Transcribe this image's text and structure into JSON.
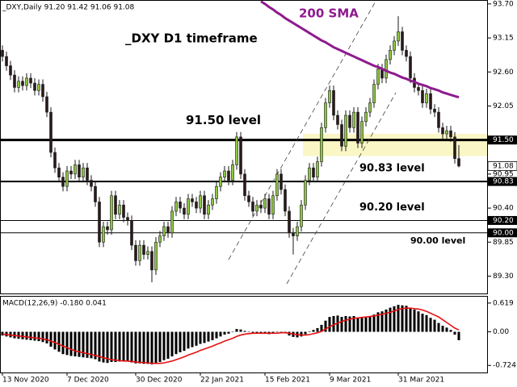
{
  "chart_data": {
    "type": "candlestick",
    "header": "_DXY,Daily  91.20 91.42 91.06 91.08",
    "title": "_DXY D1 timeframe",
    "up_color": "#8cc63f",
    "down_color": "#2a1a1a",
    "ylim": [
      89.02,
      93.75
    ],
    "yticks": [
      {
        "value": 93.7,
        "label": "93.70"
      },
      93.15,
      {
        "value": 92.6,
        "label": "92.60"
      },
      92.05,
      90.95,
      {
        "value": 90.4,
        "label": "90.40"
      },
      89.85,
      {
        "value": 89.3,
        "label": "89.30"
      }
    ],
    "last_price": {
      "value": 91.08,
      "label": "91.08"
    },
    "zone": {
      "from": 91.24,
      "to": 91.6,
      "color": "#fbf6c6"
    },
    "levels": [
      {
        "value": 91.5,
        "tag": "91.50",
        "label": "91.50 level",
        "style": "thick"
      },
      {
        "value": 90.83,
        "tag": "90.83",
        "label": "90.83 level",
        "style": "medium"
      },
      {
        "value": 90.2,
        "tag": "90.20",
        "label": "90.20 level",
        "style": "thin"
      },
      {
        "value": 90.0,
        "tag": "90.00",
        "label": "90.00 level",
        "style": "thin"
      }
    ],
    "categories": [
      "13 Nov 2020",
      null,
      null,
      null,
      null,
      null,
      null,
      null,
      null,
      null,
      null,
      null,
      null,
      null,
      null,
      null,
      "7 Dec 2020",
      null,
      null,
      null,
      null,
      null,
      null,
      null,
      null,
      null,
      null,
      null,
      null,
      null,
      null,
      null,
      null,
      "30 Dec 2020",
      null,
      null,
      null,
      null,
      null,
      null,
      null,
      null,
      null,
      null,
      null,
      null,
      null,
      null,
      null,
      "22 Jan 2021",
      null,
      null,
      null,
      null,
      null,
      null,
      null,
      null,
      null,
      null,
      null,
      null,
      null,
      null,
      null,
      "15 Feb 2021",
      null,
      null,
      null,
      null,
      null,
      null,
      null,
      null,
      null,
      null,
      null,
      null,
      null,
      null,
      null,
      "9 Mar 2021",
      null,
      null,
      null,
      null,
      null,
      null,
      null,
      null,
      null,
      null,
      null,
      null,
      null,
      null,
      null,
      null,
      "31 Mar 2021",
      null,
      null,
      null,
      null,
      null,
      null,
      null,
      null,
      null,
      null,
      null,
      null,
      null,
      null,
      null
    ],
    "candles": [
      [
        92.95,
        93.03,
        92.77,
        92.85
      ],
      [
        92.85,
        92.93,
        92.62,
        92.7
      ],
      [
        92.7,
        92.78,
        92.47,
        92.55
      ],
      [
        92.55,
        92.63,
        92.27,
        92.35
      ],
      [
        92.35,
        92.53,
        92.27,
        92.45
      ],
      [
        92.45,
        92.53,
        92.3,
        92.38
      ],
      [
        92.38,
        92.58,
        92.3,
        92.5
      ],
      [
        92.5,
        92.58,
        92.34,
        92.42
      ],
      [
        92.42,
        92.5,
        92.22,
        92.3
      ],
      [
        92.3,
        92.48,
        92.22,
        92.4
      ],
      [
        92.4,
        92.48,
        92.12,
        92.2
      ],
      [
        92.2,
        92.28,
        91.87,
        91.95
      ],
      [
        91.95,
        92.03,
        91.22,
        91.3
      ],
      [
        91.3,
        91.38,
        90.97,
        91.05
      ],
      [
        91.05,
        91.13,
        90.82,
        90.9
      ],
      [
        90.9,
        90.98,
        90.67,
        90.75
      ],
      [
        90.75,
        91.08,
        90.67,
        91.0
      ],
      [
        91.0,
        91.08,
        90.87,
        90.95
      ],
      [
        90.95,
        91.18,
        90.87,
        91.1
      ],
      [
        91.1,
        91.18,
        90.82,
        90.9
      ],
      [
        90.9,
        91.13,
        90.82,
        91.05
      ],
      [
        91.05,
        91.13,
        90.77,
        90.85
      ],
      [
        90.85,
        90.93,
        90.67,
        90.75
      ],
      [
        90.75,
        90.83,
        90.42,
        90.5
      ],
      [
        90.5,
        90.58,
        89.77,
        89.85
      ],
      [
        89.85,
        90.18,
        89.77,
        90.1
      ],
      [
        90.1,
        90.18,
        89.97,
        90.05
      ],
      [
        90.05,
        90.68,
        89.97,
        90.6
      ],
      [
        90.6,
        90.68,
        90.22,
        90.3
      ],
      [
        90.3,
        90.53,
        90.22,
        90.45
      ],
      [
        90.45,
        90.53,
        90.17,
        90.25
      ],
      [
        90.25,
        90.33,
        90.12,
        90.2
      ],
      [
        90.2,
        90.28,
        89.72,
        89.8
      ],
      [
        89.8,
        89.88,
        89.47,
        89.55
      ],
      [
        89.55,
        89.88,
        89.47,
        89.8
      ],
      [
        89.8,
        89.88,
        89.57,
        89.65
      ],
      [
        89.65,
        89.78,
        89.57,
        89.7
      ],
      [
        89.7,
        89.78,
        89.2,
        89.4
      ],
      [
        89.4,
        89.93,
        89.32,
        89.85
      ],
      [
        89.85,
        90.03,
        89.77,
        89.95
      ],
      [
        89.95,
        90.18,
        89.87,
        90.1
      ],
      [
        90.1,
        90.18,
        89.92,
        90.0
      ],
      [
        90.0,
        90.43,
        89.92,
        90.35
      ],
      [
        90.35,
        90.58,
        90.27,
        90.5
      ],
      [
        90.5,
        90.58,
        90.32,
        90.4
      ],
      [
        90.4,
        90.48,
        90.22,
        90.3
      ],
      [
        90.3,
        90.63,
        90.22,
        90.55
      ],
      [
        90.55,
        90.63,
        90.42,
        90.5
      ],
      [
        90.5,
        90.58,
        90.32,
        90.4
      ],
      [
        90.4,
        90.68,
        90.32,
        90.6
      ],
      [
        90.6,
        90.68,
        90.22,
        90.3
      ],
      [
        90.3,
        90.53,
        90.22,
        90.45
      ],
      [
        90.45,
        90.63,
        90.37,
        90.55
      ],
      [
        90.55,
        90.83,
        90.47,
        90.75
      ],
      [
        90.75,
        90.98,
        90.67,
        90.9
      ],
      [
        90.9,
        91.08,
        90.82,
        91.0
      ],
      [
        91.0,
        91.08,
        90.77,
        90.85
      ],
      [
        90.85,
        91.18,
        90.77,
        91.1
      ],
      [
        91.1,
        91.63,
        91.02,
        91.55
      ],
      [
        91.55,
        91.63,
        90.87,
        90.95
      ],
      [
        90.95,
        91.03,
        90.52,
        90.6
      ],
      [
        90.6,
        90.68,
        90.42,
        90.5
      ],
      [
        90.5,
        90.58,
        90.27,
        90.35
      ],
      [
        90.35,
        90.53,
        90.27,
        90.45
      ],
      [
        90.45,
        90.53,
        90.32,
        90.4
      ],
      [
        90.4,
        90.63,
        90.32,
        90.55
      ],
      [
        90.55,
        90.63,
        90.22,
        90.3
      ],
      [
        90.3,
        90.68,
        90.22,
        90.6
      ],
      [
        90.6,
        91.03,
        90.52,
        90.95
      ],
      [
        90.95,
        91.03,
        90.62,
        90.7
      ],
      [
        90.7,
        90.78,
        90.27,
        90.35
      ],
      [
        90.35,
        90.43,
        89.92,
        90.0
      ],
      [
        90.0,
        90.08,
        89.65,
        89.95
      ],
      [
        89.95,
        90.18,
        89.87,
        90.1
      ],
      [
        90.1,
        90.53,
        90.02,
        90.45
      ],
      [
        90.45,
        90.93,
        90.37,
        90.85
      ],
      [
        90.85,
        91.13,
        90.77,
        91.05
      ],
      [
        91.05,
        91.13,
        90.82,
        90.9
      ],
      [
        90.9,
        91.23,
        90.82,
        91.15
      ],
      [
        91.15,
        91.78,
        91.07,
        91.7
      ],
      [
        91.7,
        92.18,
        91.62,
        92.1
      ],
      [
        92.1,
        92.38,
        92.02,
        92.3
      ],
      [
        92.3,
        92.38,
        91.82,
        91.9
      ],
      [
        91.9,
        91.98,
        91.67,
        91.75
      ],
      [
        91.75,
        91.83,
        91.32,
        91.4
      ],
      [
        91.4,
        91.98,
        91.32,
        91.9
      ],
      [
        91.9,
        91.98,
        91.62,
        91.7
      ],
      [
        91.7,
        92.03,
        91.62,
        91.95
      ],
      [
        91.95,
        92.03,
        91.37,
        91.45
      ],
      [
        91.45,
        91.88,
        91.37,
        91.8
      ],
      [
        91.8,
        92.03,
        91.72,
        91.95
      ],
      [
        91.95,
        92.18,
        91.87,
        92.1
      ],
      [
        92.1,
        92.48,
        92.02,
        92.4
      ],
      [
        92.4,
        92.73,
        92.32,
        92.65
      ],
      [
        92.65,
        92.73,
        92.42,
        92.5
      ],
      [
        92.5,
        92.88,
        92.42,
        92.8
      ],
      [
        92.8,
        93.03,
        92.72,
        92.95
      ],
      [
        92.95,
        93.18,
        92.87,
        93.1
      ],
      [
        93.1,
        93.5,
        93.02,
        93.25
      ],
      [
        93.25,
        93.33,
        92.87,
        92.95
      ],
      [
        92.95,
        93.03,
        92.77,
        92.85
      ],
      [
        92.85,
        92.93,
        92.42,
        92.5
      ],
      [
        92.5,
        92.58,
        92.27,
        92.35
      ],
      [
        92.35,
        92.43,
        92.22,
        92.3
      ],
      [
        92.3,
        92.38,
        92.02,
        92.1
      ],
      [
        92.1,
        92.33,
        92.02,
        92.25
      ],
      [
        92.25,
        92.33,
        91.92,
        92.0
      ],
      [
        92.0,
        92.08,
        91.87,
        91.95
      ],
      [
        91.95,
        92.03,
        91.62,
        91.7
      ],
      [
        91.7,
        91.78,
        91.52,
        91.6
      ],
      [
        91.6,
        91.73,
        91.52,
        91.65
      ],
      [
        91.65,
        91.73,
        91.47,
        91.55
      ],
      [
        91.55,
        91.63,
        91.12,
        91.2
      ],
      [
        91.2,
        91.42,
        91.06,
        91.08
      ]
    ],
    "sma": {
      "name": "200 SMA",
      "color": "#8e1a8e",
      "values": [
        null,
        null,
        null,
        null,
        null,
        null,
        null,
        null,
        null,
        null,
        null,
        null,
        null,
        null,
        null,
        null,
        null,
        null,
        null,
        null,
        null,
        null,
        null,
        null,
        null,
        null,
        null,
        null,
        null,
        null,
        null,
        null,
        null,
        null,
        null,
        null,
        null,
        null,
        null,
        null,
        null,
        null,
        null,
        null,
        null,
        null,
        null,
        null,
        null,
        null,
        null,
        null,
        null,
        null,
        null,
        null,
        null,
        null,
        null,
        null,
        null,
        null,
        null,
        null,
        93.74,
        93.7,
        93.65,
        93.61,
        93.56,
        93.52,
        93.47,
        93.43,
        93.39,
        93.35,
        93.31,
        93.27,
        93.23,
        93.19,
        93.15,
        93.11,
        93.08,
        93.04,
        93.0,
        92.97,
        92.94,
        92.91,
        92.88,
        92.85,
        92.82,
        92.79,
        92.76,
        92.73,
        92.7,
        92.68,
        92.65,
        92.62,
        92.59,
        92.57,
        92.54,
        92.51,
        92.49,
        92.46,
        92.44,
        92.41,
        92.39,
        92.37,
        92.34,
        92.32,
        92.3,
        92.27,
        92.25,
        92.23,
        92.21,
        92.19
      ]
    },
    "macd": {
      "label": "MACD(12,26,9) -0.180 0.041",
      "ylim": [
        -0.876,
        0.756
      ],
      "yticks": [
        0.619,
        {
          "value": 0,
          "label": "0.00"
        },
        -0.724
      ],
      "hist_color": "#000000",
      "signal_color": "#e41010",
      "hist": [
        -0.08,
        -0.1,
        -0.12,
        -0.14,
        -0.15,
        -0.16,
        -0.17,
        -0.18,
        -0.19,
        -0.2,
        -0.22,
        -0.25,
        -0.32,
        -0.38,
        -0.43,
        -0.48,
        -0.5,
        -0.52,
        -0.53,
        -0.54,
        -0.55,
        -0.56,
        -0.57,
        -0.59,
        -0.64,
        -0.66,
        -0.67,
        -0.65,
        -0.65,
        -0.64,
        -0.64,
        -0.64,
        -0.66,
        -0.68,
        -0.68,
        -0.69,
        -0.69,
        -0.7,
        -0.68,
        -0.65,
        -0.61,
        -0.58,
        -0.53,
        -0.48,
        -0.44,
        -0.41,
        -0.36,
        -0.33,
        -0.3,
        -0.26,
        -0.24,
        -0.21,
        -0.18,
        -0.14,
        -0.1,
        -0.06,
        -0.04,
        0.0,
        0.06,
        0.05,
        0.02,
        0.0,
        -0.02,
        -0.03,
        -0.04,
        -0.03,
        -0.05,
        -0.04,
        0.0,
        0.0,
        -0.03,
        -0.08,
        -0.11,
        -0.12,
        -0.1,
        -0.05,
        0.01,
        0.04,
        0.08,
        0.15,
        0.24,
        0.32,
        0.34,
        0.35,
        0.32,
        0.34,
        0.33,
        0.34,
        0.3,
        0.3,
        0.31,
        0.33,
        0.37,
        0.42,
        0.44,
        0.48,
        0.52,
        0.55,
        0.58,
        0.57,
        0.56,
        0.52,
        0.48,
        0.44,
        0.39,
        0.36,
        0.3,
        0.26,
        0.19,
        0.13,
        0.09,
        0.04,
        -0.06,
        -0.18
      ],
      "signal": [
        -0.05,
        -0.06,
        -0.07,
        -0.08,
        -0.09,
        -0.1,
        -0.11,
        -0.12,
        -0.13,
        -0.14,
        -0.15,
        -0.17,
        -0.2,
        -0.23,
        -0.27,
        -0.31,
        -0.34,
        -0.38,
        -0.41,
        -0.43,
        -0.45,
        -0.47,
        -0.49,
        -0.51,
        -0.53,
        -0.56,
        -0.58,
        -0.6,
        -0.61,
        -0.62,
        -0.63,
        -0.63,
        -0.64,
        -0.65,
        -0.66,
        -0.66,
        -0.67,
        -0.68,
        -0.68,
        -0.68,
        -0.67,
        -0.65,
        -0.63,
        -0.6,
        -0.57,
        -0.54,
        -0.5,
        -0.47,
        -0.44,
        -0.4,
        -0.37,
        -0.34,
        -0.31,
        -0.27,
        -0.24,
        -0.2,
        -0.17,
        -0.14,
        -0.1,
        -0.07,
        -0.05,
        -0.04,
        -0.03,
        -0.03,
        -0.03,
        -0.03,
        -0.03,
        -0.03,
        -0.03,
        -0.02,
        -0.02,
        -0.03,
        -0.05,
        -0.06,
        -0.07,
        -0.07,
        -0.06,
        -0.04,
        -0.02,
        0.01,
        0.06,
        0.11,
        0.15,
        0.19,
        0.22,
        0.25,
        0.27,
        0.29,
        0.3,
        0.31,
        0.32,
        0.33,
        0.34,
        0.36,
        0.38,
        0.4,
        0.42,
        0.45,
        0.48,
        0.5,
        0.51,
        0.51,
        0.5,
        0.49,
        0.47,
        0.44,
        0.4,
        0.36,
        0.32,
        0.26,
        0.2,
        0.14,
        0.08,
        0.041
      ]
    }
  }
}
